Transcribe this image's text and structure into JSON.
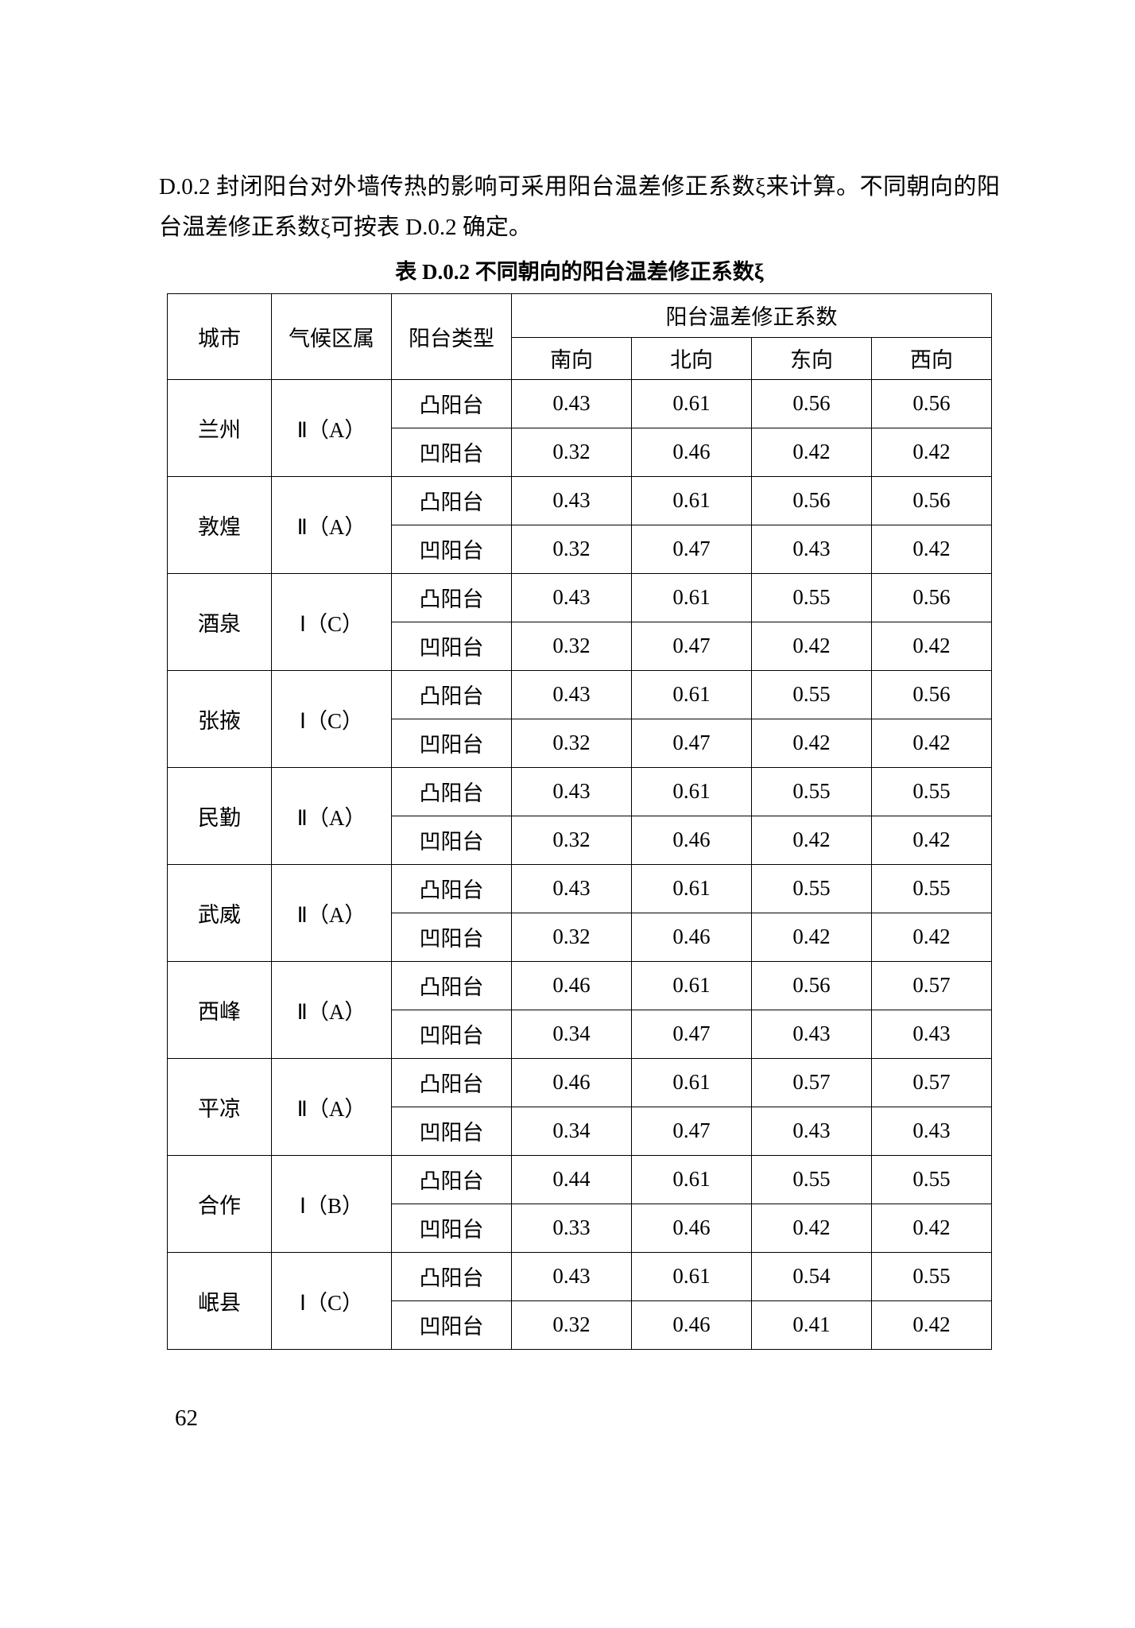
{
  "para_text": "D.0.2  封闭阳台对外墙传热的影响可采用阳台温差修正系数ξ来计算。不同朝向的阳台温差修正系数ξ可按表 D.0.2 确定。",
  "caption": "表 D.0.2  不同朝向的阳台温差修正系数ξ",
  "headers": {
    "city": "城市",
    "zone": "气候区属",
    "type": "阳台类型",
    "coef": "阳台温差修正系数",
    "south": "南向",
    "north": "北向",
    "east": "东向",
    "west": "西向"
  },
  "type_labels": {
    "convex": "凸阳台",
    "concave": "凹阳台"
  },
  "cities": [
    {
      "name": "兰州",
      "zone": "Ⅱ（A）",
      "convex": {
        "south": "0.43",
        "north": "0.61",
        "east": "0.56",
        "west": "0.56"
      },
      "concave": {
        "south": "0.32",
        "north": "0.46",
        "east": "0.42",
        "west": "0.42"
      }
    },
    {
      "name": "敦煌",
      "zone": "Ⅱ（A）",
      "convex": {
        "south": "0.43",
        "north": "0.61",
        "east": "0.56",
        "west": "0.56"
      },
      "concave": {
        "south": "0.32",
        "north": "0.47",
        "east": "0.43",
        "west": "0.42"
      }
    },
    {
      "name": "酒泉",
      "zone": "Ⅰ（C）",
      "convex": {
        "south": "0.43",
        "north": "0.61",
        "east": "0.55",
        "west": "0.56"
      },
      "concave": {
        "south": "0.32",
        "north": "0.47",
        "east": "0.42",
        "west": "0.42"
      }
    },
    {
      "name": "张掖",
      "zone": "Ⅰ（C）",
      "convex": {
        "south": "0.43",
        "north": "0.61",
        "east": "0.55",
        "west": "0.56"
      },
      "concave": {
        "south": "0.32",
        "north": "0.47",
        "east": "0.42",
        "west": "0.42"
      }
    },
    {
      "name": "民勤",
      "zone": "Ⅱ（A）",
      "convex": {
        "south": "0.43",
        "north": "0.61",
        "east": "0.55",
        "west": "0.55"
      },
      "concave": {
        "south": "0.32",
        "north": "0.46",
        "east": "0.42",
        "west": "0.42"
      }
    },
    {
      "name": "武威",
      "zone": "Ⅱ（A）",
      "convex": {
        "south": "0.43",
        "north": "0.61",
        "east": "0.55",
        "west": "0.55"
      },
      "concave": {
        "south": "0.32",
        "north": "0.46",
        "east": "0.42",
        "west": "0.42"
      }
    },
    {
      "name": "西峰",
      "zone": "Ⅱ（A）",
      "convex": {
        "south": "0.46",
        "north": "0.61",
        "east": "0.56",
        "west": "0.57"
      },
      "concave": {
        "south": "0.34",
        "north": "0.47",
        "east": "0.43",
        "west": "0.43"
      }
    },
    {
      "name": "平凉",
      "zone": "Ⅱ（A）",
      "convex": {
        "south": "0.46",
        "north": "0.61",
        "east": "0.57",
        "west": "0.57"
      },
      "concave": {
        "south": "0.34",
        "north": "0.47",
        "east": "0.43",
        "west": "0.43"
      }
    },
    {
      "name": "合作",
      "zone": "Ⅰ（B）",
      "convex": {
        "south": "0.44",
        "north": "0.61",
        "east": "0.55",
        "west": "0.55"
      },
      "concave": {
        "south": "0.33",
        "north": "0.46",
        "east": "0.42",
        "west": "0.42"
      }
    },
    {
      "name": "岷县",
      "zone": "Ⅰ（C）",
      "convex": {
        "south": "0.43",
        "north": "0.61",
        "east": "0.54",
        "west": "0.55"
      },
      "concave": {
        "south": "0.32",
        "north": "0.46",
        "east": "0.41",
        "west": "0.42"
      }
    }
  ],
  "page_number": "62"
}
